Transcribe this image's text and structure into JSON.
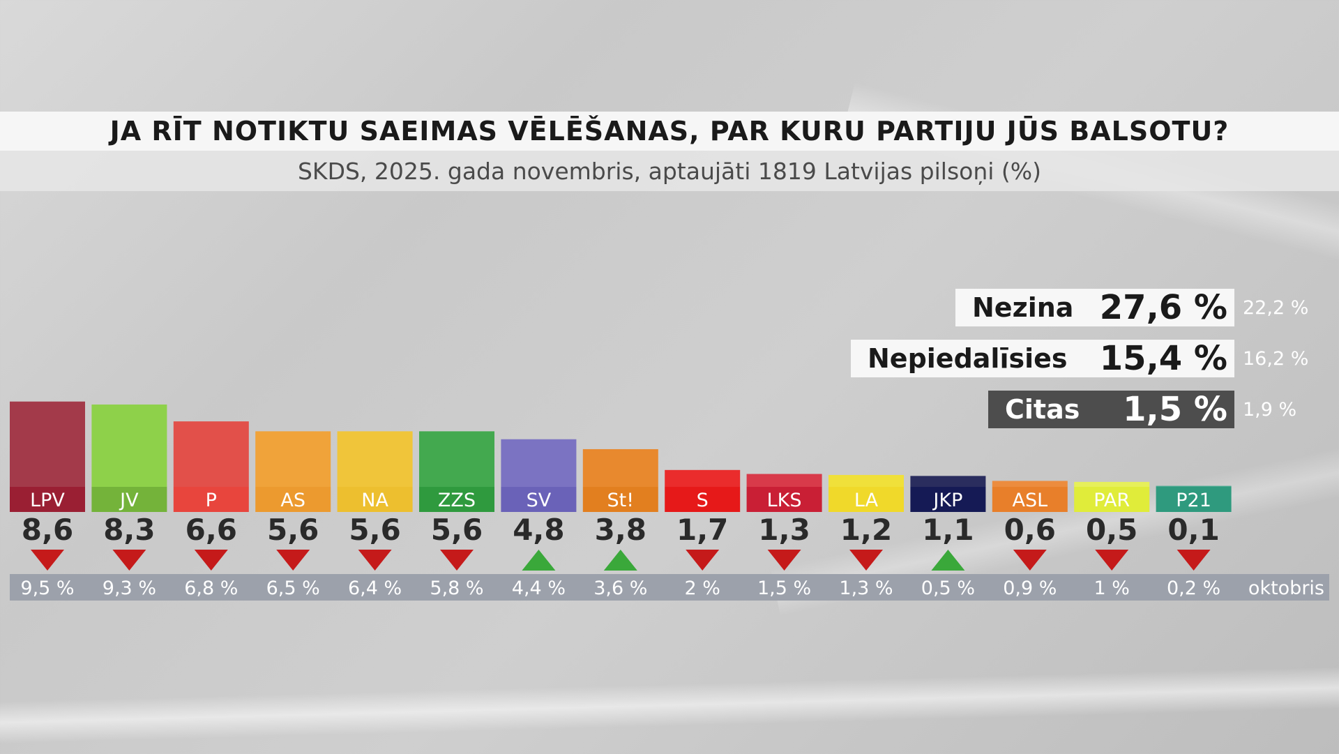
{
  "chart_data": {
    "type": "bar",
    "title": "JA RĪT NOTIKTU SAEIMAS VĒLĒŠANAS, PAR KURU PARTIJU JŪS BALSOTU?",
    "subtitle": "SKDS, 2025. gada novembris, aptaujāti 1819 Latvijas pilsoņi (%)",
    "categories": [
      "LPV",
      "JV",
      "P",
      "AS",
      "NA",
      "ZZS",
      "SV",
      "St!",
      "S",
      "LKS",
      "LA",
      "JKP",
      "ASL",
      "PAR",
      "P21"
    ],
    "values": [
      8.6,
      8.3,
      6.6,
      5.6,
      5.6,
      5.6,
      4.8,
      3.8,
      1.7,
      1.3,
      1.2,
      1.1,
      0.6,
      0.5,
      0.1
    ],
    "value_labels": [
      "8,6",
      "8,3",
      "6,6",
      "5,6",
      "5,6",
      "5,6",
      "4,8",
      "3,8",
      "1,7",
      "1,3",
      "1,2",
      "1,1",
      "0,6",
      "0,5",
      "0,1"
    ],
    "trend": [
      "down",
      "down",
      "down",
      "down",
      "down",
      "down",
      "up",
      "up",
      "down",
      "down",
      "down",
      "up",
      "down",
      "down",
      "down"
    ],
    "previous_values": [
      9.5,
      9.3,
      6.8,
      6.5,
      6.4,
      5.8,
      4.4,
      3.6,
      2,
      1.5,
      1.3,
      0.5,
      0.9,
      1,
      0.2
    ],
    "previous_labels": [
      "9,5 %",
      "9,3 %",
      "6,8 %",
      "6,5 %",
      "6,4 %",
      "5,8 %",
      "4,4 %",
      "3,6 %",
      "2 %",
      "1,5 %",
      "1,3 %",
      "0,5 %",
      "0,9 %",
      "1 %",
      "0,2 %"
    ],
    "previous_period_label": "oktobris",
    "colors": [
      "#a33a4a",
      "#8ed14a",
      "#e2504a",
      "#f0a33a",
      "#f0c53a",
      "#43a94f",
      "#7b73c2",
      "#e8892e",
      "#ea2c2c",
      "#d83a4a",
      "#f0e03a",
      "#2a2d5e",
      "#ec8c3e",
      "#e6ef5a",
      "#45a88e"
    ],
    "label_colors": [
      "#9a1f33",
      "#74b33a",
      "#e8453d",
      "#ec9a2f",
      "#edbf2f",
      "#2f9a3e",
      "#6a62b8",
      "#e27f1f",
      "#e61919",
      "#c91f35",
      "#f0d92a",
      "#151a55",
      "#e87f2a",
      "#e0ec3a",
      "#2f9a7e"
    ],
    "trend_up_color": "#3aa83a",
    "trend_down_color": "#c51a1a",
    "ylim": [
      0,
      9
    ],
    "grid": false,
    "legend": "none",
    "side_stats": [
      {
        "label": "Nezina",
        "value": "27,6 %",
        "previous": "22,2 %",
        "style": "white"
      },
      {
        "label": "Nepiedalīsies",
        "value": "15,4 %",
        "previous": "16,2 %",
        "style": "white"
      },
      {
        "label": "Citas",
        "value": "1,5 %",
        "previous": "1,9 %",
        "style": "dark"
      }
    ]
  }
}
